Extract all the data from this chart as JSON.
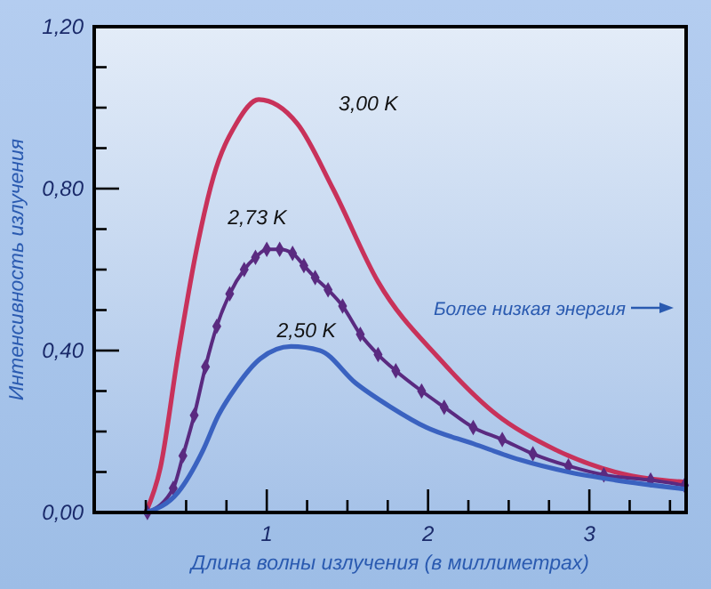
{
  "chart_data": {
    "type": "line",
    "xlabel": "Длина волны излучения (в миллиметрах)",
    "ylabel": "Интенсивность излучения",
    "xlim": [
      -0.07,
      3.6
    ],
    "ylim": [
      0,
      1.2
    ],
    "xticks": [
      {
        "value": 0.25,
        "label": null
      },
      {
        "value": 0.5,
        "label": null
      },
      {
        "value": 0.75,
        "label": null
      },
      1,
      {
        "value": 1.25,
        "label": null
      },
      {
        "value": 1.5,
        "label": null
      },
      {
        "value": 1.75,
        "label": null
      },
      2,
      {
        "value": 2.25,
        "label": null
      },
      {
        "value": 2.5,
        "label": null
      },
      {
        "value": 2.75,
        "label": null
      },
      3,
      {
        "value": 3.25,
        "label": null
      },
      {
        "value": 3.5,
        "label": null
      }
    ],
    "yticks": [
      {
        "value": 0,
        "label": "0,00"
      },
      {
        "value": 0.1,
        "label": null
      },
      {
        "value": 0.2,
        "label": null
      },
      {
        "value": 0.3,
        "label": null
      },
      {
        "value": 0.4,
        "label": "0,40"
      },
      {
        "value": 0.5,
        "label": null
      },
      {
        "value": 0.6,
        "label": null
      },
      {
        "value": 0.7,
        "label": null
      },
      {
        "value": 0.8,
        "label": "0,80"
      },
      {
        "value": 0.9,
        "label": null
      },
      {
        "value": 1.0,
        "label": null
      },
      {
        "value": 1.1,
        "label": null
      },
      {
        "value": 1.2,
        "label": "1,20"
      }
    ],
    "grid": false,
    "line_style": "solid",
    "annotations": [
      "Более низкая энергия"
    ],
    "series": [
      {
        "name": "3,00 K",
        "color": "#c8325a",
        "marker": "none",
        "x": [
          0.25,
          0.34,
          0.45,
          0.56,
          0.67,
          0.81,
          0.95,
          1.19,
          1.41,
          1.69,
          2.07,
          2.43,
          2.79,
          3.16,
          3.59
        ],
        "values": [
          0,
          0.11,
          0.39,
          0.64,
          0.83,
          0.96,
          1.02,
          0.96,
          0.8,
          0.57,
          0.38,
          0.24,
          0.155,
          0.1,
          0.075
        ]
      },
      {
        "name": "2,73 K",
        "color": "#5a2a80",
        "marker": "diamond",
        "x": [
          0.26,
          0.42,
          0.48,
          0.55,
          0.62,
          0.69,
          0.77,
          0.86,
          0.93,
          1.0,
          1.08,
          1.16,
          1.23,
          1.3,
          1.38,
          1.47,
          1.58,
          1.69,
          1.8,
          1.96,
          2.1,
          2.28,
          2.46,
          2.65,
          2.87,
          3.09,
          3.38,
          3.59
        ],
        "values": [
          0,
          0.06,
          0.14,
          0.24,
          0.36,
          0.46,
          0.54,
          0.6,
          0.63,
          0.65,
          0.65,
          0.64,
          0.61,
          0.58,
          0.55,
          0.51,
          0.44,
          0.39,
          0.35,
          0.3,
          0.26,
          0.21,
          0.18,
          0.145,
          0.115,
          0.093,
          0.08,
          0.067
        ]
      },
      {
        "name": "2,50 K",
        "color": "#3a62c0",
        "marker": "none",
        "x": [
          0.25,
          0.45,
          0.6,
          0.7,
          0.81,
          0.96,
          1.15,
          1.33,
          1.55,
          1.77,
          1.99,
          2.28,
          2.57,
          2.87,
          3.16,
          3.59
        ],
        "values": [
          0,
          0.05,
          0.15,
          0.24,
          0.31,
          0.38,
          0.41,
          0.4,
          0.32,
          0.26,
          0.21,
          0.17,
          0.13,
          0.1,
          0.08,
          0.058
        ]
      }
    ]
  }
}
